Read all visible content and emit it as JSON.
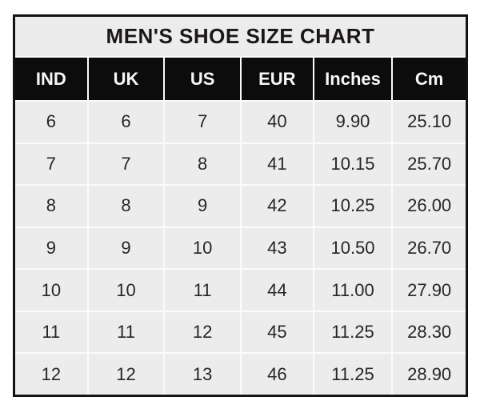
{
  "colors": {
    "page_bg": "#ffffff",
    "table_border": "#131313",
    "gridline": "#fbfbfb",
    "cell_bg": "#ececec",
    "header_bg": "#0c0c0c",
    "header_text": "#f7f7f7",
    "title_text": "#1b161a",
    "data_text": "#262626"
  },
  "chart_data": {
    "type": "table",
    "title": "MEN'S SHOE SIZE CHART",
    "columns": [
      "IND",
      "UK",
      "US",
      "EUR",
      "Inches",
      "Cm"
    ],
    "rows": [
      [
        "6",
        "6",
        "7",
        "40",
        "9.90",
        "25.10"
      ],
      [
        "7",
        "7",
        "8",
        "41",
        "10.15",
        "25.70"
      ],
      [
        "8",
        "8",
        "9",
        "42",
        "10.25",
        "26.00"
      ],
      [
        "9",
        "9",
        "10",
        "43",
        "10.50",
        "26.70"
      ],
      [
        "10",
        "10",
        "11",
        "44",
        "11.00",
        "27.90"
      ],
      [
        "11",
        "11",
        "12",
        "45",
        "11.25",
        "28.30"
      ],
      [
        "12",
        "12",
        "13",
        "46",
        "11.25",
        "28.90"
      ]
    ],
    "layout": {
      "legend": "none",
      "grid": "on",
      "header_style": "black-band-white-text",
      "title_position": "top-center"
    }
  }
}
